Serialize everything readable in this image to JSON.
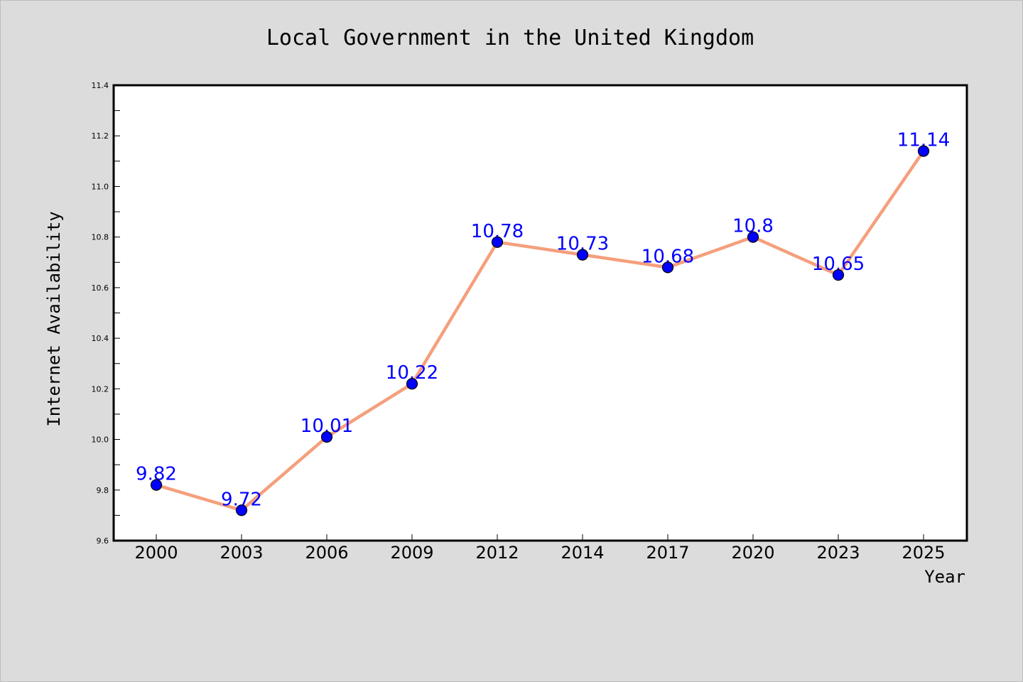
{
  "chart_data": {
    "type": "line",
    "title": "Local Government in the United Kingdom",
    "xlabel": "Year",
    "ylabel": "Internet Availability",
    "categories": [
      "2000",
      "2003",
      "2006",
      "2009",
      "2012",
      "2014",
      "2017",
      "2020",
      "2023",
      "2025"
    ],
    "series": [
      {
        "values": [
          9.82,
          9.72,
          10.01,
          10.22,
          10.78,
          10.73,
          10.68,
          10.8,
          10.65,
          11.14
        ],
        "labels": [
          "9.82",
          "9.72",
          "10.01",
          "10.22",
          "10.78",
          "10.73",
          "10.68",
          "10.8",
          "10.65",
          "11.14"
        ]
      }
    ],
    "ylim": [
      9.6,
      11.4
    ],
    "yticks": [
      "9.6",
      "9.8",
      "10.0",
      "10.2",
      "10.4",
      "10.6",
      "10.8",
      "11.0",
      "11.2",
      "11.4"
    ],
    "grid": false,
    "legend": "none",
    "colors": {
      "line": "#f59f7c",
      "marker_fill": "#0000ff",
      "marker_stroke": "#000000",
      "data_label": "#0000ff",
      "figure_bg": "#dcdcdc",
      "plot_bg": "#ffffff"
    }
  }
}
